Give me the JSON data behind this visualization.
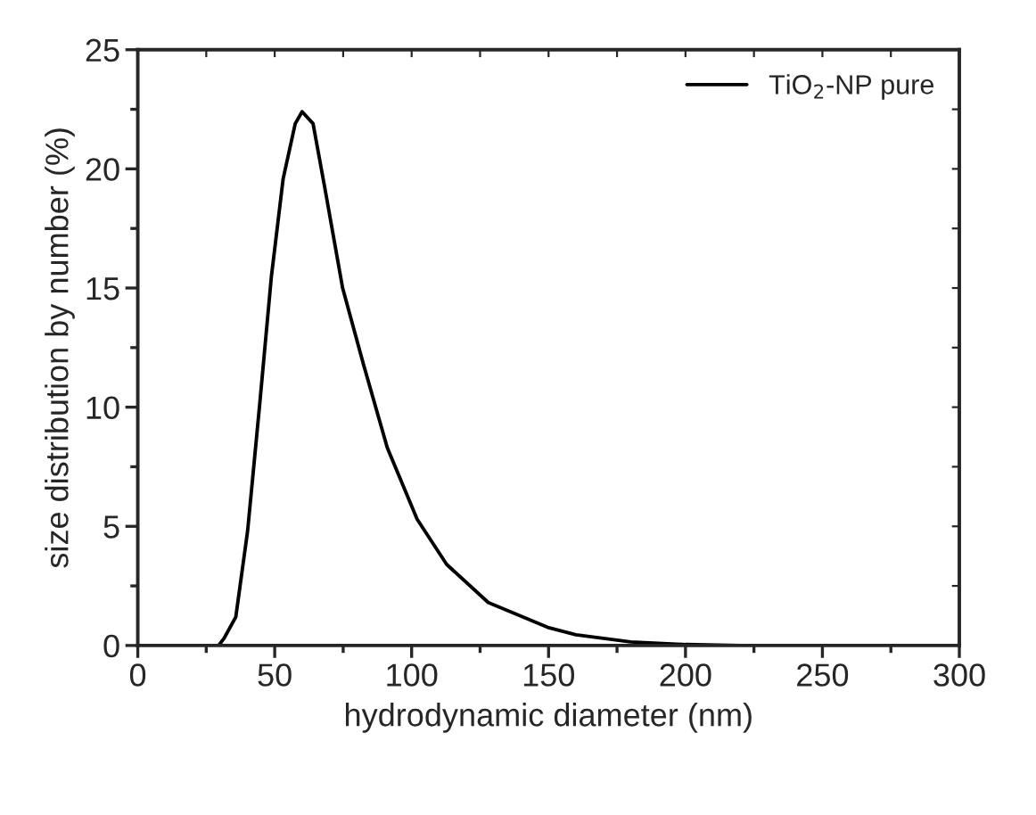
{
  "chart_data": {
    "type": "line",
    "xlabel": "hydrodynamic diameter (nm)",
    "ylabel": "size distribution by number (%)",
    "series": [
      {
        "name": "TiO$_{2}$-NP pure",
        "color": "#000000",
        "x": [
          0,
          20,
          29.5,
          31.5,
          35.8,
          40.1,
          44.5,
          48.8,
          53.1,
          57.5,
          60,
          64,
          68.3,
          74.8,
          82.4,
          91.1,
          102,
          112.8,
          128,
          149.7,
          160,
          180,
          200,
          220,
          260,
          300
        ],
        "values": [
          0,
          0,
          0,
          0.3,
          1.2,
          4.8,
          10.1,
          15.5,
          19.6,
          21.9,
          22.4,
          21.9,
          19.2,
          15,
          11.8,
          8.3,
          5.3,
          3.4,
          1.8,
          0.76,
          0.45,
          0.15,
          0.04,
          0,
          0,
          0
        ]
      }
    ],
    "xlim": [
      0,
      300
    ],
    "ylim": [
      0,
      25
    ],
    "xticks": [
      0,
      {
        "value": 25,
        "label": null
      },
      50,
      {
        "value": 75,
        "label": null
      },
      100,
      {
        "value": 125,
        "label": null
      },
      150,
      {
        "value": 175,
        "label": null
      },
      200,
      {
        "value": 225,
        "label": null
      },
      250,
      {
        "value": 275,
        "label": null
      },
      300
    ],
    "yticks": [
      0,
      {
        "value": 2.5,
        "label": null
      },
      5,
      {
        "value": 7.5,
        "label": null
      },
      10,
      {
        "value": 12.5,
        "label": null
      },
      15,
      {
        "value": 17.5,
        "label": null
      },
      20,
      {
        "value": 22.5,
        "label": null
      },
      25
    ],
    "legend": "top right",
    "line_style": "solid",
    "marker": "none",
    "grid": false
  }
}
